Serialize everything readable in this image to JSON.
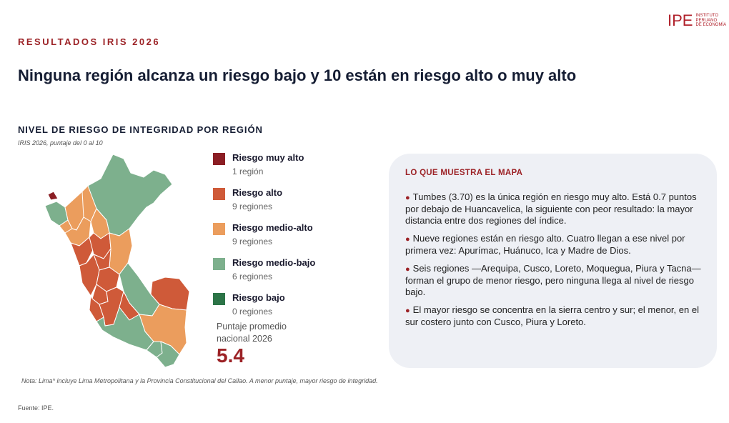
{
  "logo": {
    "mark": "IPE",
    "subtitle": "INSTITUTO\nPERUANO\nDE ECONOMÍA"
  },
  "kicker": "RESULTADOS IRIS 2026",
  "headline": "Ninguna región alcanza un riesgo bajo y 10 están en riesgo alto o muy alto",
  "map_section": {
    "title": "NIVEL DE RIESGO DE INTEGRIDAD POR REGIÓN",
    "subtitle": "IRIS 2026, puntaje del 0 al 10"
  },
  "legend": [
    {
      "label": "Riesgo muy alto",
      "count": "1 región",
      "color": "#8b1e24"
    },
    {
      "label": "Riesgo alto",
      "count": "9 regiones",
      "color": "#cf5a39"
    },
    {
      "label": "Riesgo medio-alto",
      "count": "9 regiones",
      "color": "#eb9d5d"
    },
    {
      "label": "Riesgo medio-bajo",
      "count": "6 regiones",
      "color": "#7db08d"
    },
    {
      "label": "Riesgo bajo",
      "count": "0 regiones",
      "color": "#2c7447"
    }
  ],
  "average": {
    "label": "Puntaje promedio nacional 2026",
    "value": "5.4"
  },
  "panel": {
    "title": "LO QUE MUESTRA EL MAPA",
    "bullets": [
      "Tumbes (3.70) es la única región en riesgo muy alto. Está 0.7 puntos por debajo de Huancavelica, la siguiente con peor resultado: la mayor distancia entre dos regiones del índice.",
      "Nueve regiones están en riesgo alto. Cuatro llegan a ese nivel por primera vez: Apurímac, Huánuco, Ica y Madre de Dios.",
      "Seis regiones —Arequipa, Cusco, Loreto, Moquegua, Piura y Tacna— forman el grupo de menor riesgo, pero ninguna llega al nivel de riesgo bajo.",
      "El mayor riesgo se concentra en la sierra centro y sur; el menor, en el sur costero junto con Cusco, Piura y Loreto."
    ]
  },
  "note": "Nota: Lima* incluye Lima Metropolitana y la Provincia Constitucional del Callao. A menor puntaje, mayor riesgo de integridad.",
  "source": "Fuente: IPE.",
  "colors": {
    "muy_alto": "#8b1e24",
    "alto": "#cf5a39",
    "medio_alto": "#eb9d5d",
    "medio_bajo": "#7db08d",
    "bajo": "#2c7447"
  }
}
